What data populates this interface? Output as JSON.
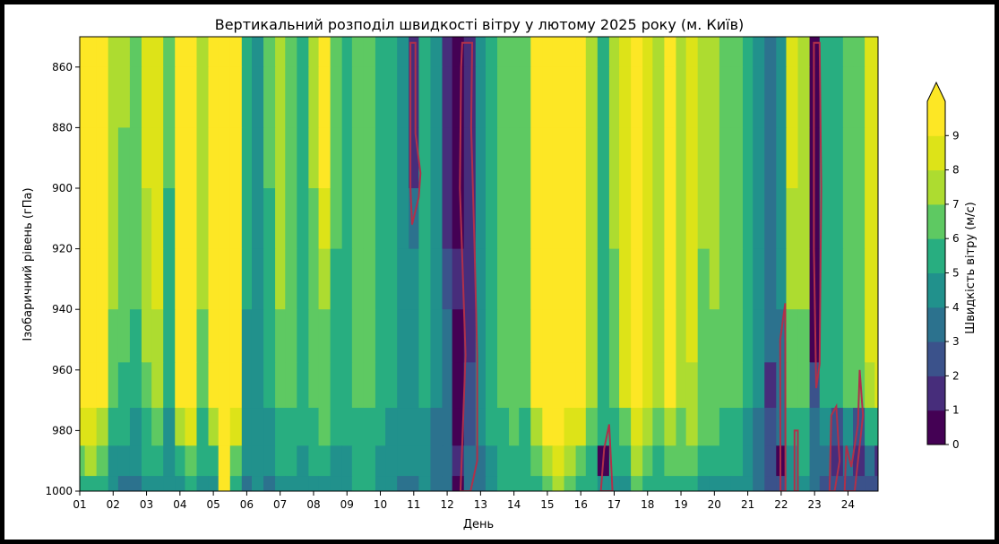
{
  "chart_data": {
    "type": "heatmap",
    "title": "Вертикальний розподіл швидкості вітру у лютому 2025 року (м. Київ)",
    "xlabel": "День",
    "ylabel": "Ізобаричний рівень (гПа)",
    "colorbar_label": "Швидкість вітру (м/с)",
    "colorbar_extend": "max",
    "x_ticks": [
      "01",
      "02",
      "03",
      "04",
      "05",
      "06",
      "07",
      "08",
      "09",
      "10",
      "11",
      "12",
      "13",
      "14",
      "15",
      "16",
      "17",
      "18",
      "19",
      "20",
      "21",
      "22",
      "23",
      "24"
    ],
    "y_ticks": [
      "860",
      "880",
      "900",
      "920",
      "940",
      "960",
      "980",
      "1000"
    ],
    "y_range": [
      850,
      1000
    ],
    "y_inverted": true,
    "x_range": [
      1,
      24.9
    ],
    "color_levels": [
      0,
      1,
      2,
      3,
      4,
      5,
      6,
      7,
      8,
      9
    ],
    "colors": [
      "#440154",
      "#472d7b",
      "#3b528b",
      "#2c728e",
      "#21918c",
      "#28ae80",
      "#5ec962",
      "#addc30",
      "#dde318",
      "#fde725"
    ],
    "contour_color": "#b0304a",
    "levels": [
      850,
      870,
      890,
      910,
      930,
      950,
      965,
      980,
      990,
      1000
    ],
    "days": [
      1,
      1.3,
      1.7,
      2,
      2.3,
      2.7,
      3,
      3.3,
      3.7,
      4,
      4.3,
      4.7,
      5,
      5.3,
      5.7,
      6,
      6.3,
      6.7,
      7,
      7.3,
      7.7,
      8,
      8.3,
      8.7,
      9,
      9.3,
      9.7,
      10,
      10.3,
      10.7,
      11,
      11.3,
      11.7,
      12,
      12.3,
      12.7,
      13,
      13.3,
      13.7,
      14,
      14.3,
      14.7,
      15,
      15.3,
      15.7,
      16,
      16.3,
      16.7,
      17,
      17.3,
      17.7,
      18,
      18.3,
      18.7,
      19,
      19.3,
      19.7,
      20,
      20.3,
      20.7,
      21,
      21.3,
      21.7,
      22,
      22.3,
      22.7,
      23,
      23.3,
      23.7,
      24,
      24.3,
      24.7,
      24.9
    ],
    "wind_speed": [
      [
        9.5,
        9.5,
        9.5,
        7.8,
        7,
        6.6,
        8,
        8.4,
        6,
        9.5,
        9.5,
        7,
        9.5,
        9.5,
        9.5,
        5,
        4,
        6,
        7.5,
        6,
        5,
        7,
        9.5,
        6,
        5,
        6,
        6,
        5.5,
        5,
        4.5,
        1.5,
        5,
        4,
        1,
        0.8,
        1.2,
        4,
        5,
        6,
        6.5,
        6,
        9,
        9.5,
        9.5,
        9.5,
        9.5,
        7,
        5.5,
        7,
        8,
        9.5,
        8.5,
        7.5,
        9,
        7.5,
        8,
        7,
        7,
        6,
        6,
        5,
        4,
        3,
        4,
        8,
        7,
        0.5,
        5,
        5,
        6,
        6,
        8,
        8.5,
        9
      ],
      [
        9.5,
        9.5,
        9.5,
        7.8,
        7,
        6.6,
        8,
        8.4,
        6,
        9.5,
        9.5,
        7,
        9.5,
        9.5,
        9.5,
        5,
        4,
        6,
        7.5,
        6,
        5,
        7,
        9.5,
        6,
        5,
        6,
        6,
        5.5,
        5,
        4.5,
        1.5,
        5,
        4,
        1,
        0.8,
        1.2,
        4,
        5,
        6,
        6.5,
        6,
        9,
        9.5,
        9.5,
        9.5,
        9.5,
        7,
        5.5,
        7,
        8,
        9.5,
        8.5,
        7.5,
        9,
        7.5,
        8,
        7,
        7,
        6,
        6,
        5,
        4,
        3,
        4,
        8,
        7,
        0.5,
        5,
        5,
        6,
        6,
        8,
        8.5,
        9
      ],
      [
        9.5,
        9.5,
        9.5,
        7.8,
        6.8,
        6.4,
        8,
        8.4,
        6,
        9.5,
        9.5,
        7,
        9.5,
        9.5,
        9.5,
        5,
        4,
        6,
        7.4,
        6,
        5,
        7,
        9.5,
        6,
        5,
        6,
        6,
        5.5,
        5,
        4.5,
        1.5,
        5,
        4,
        1,
        0.8,
        1.2,
        4,
        5,
        6,
        6.5,
        6,
        9,
        9.5,
        9.5,
        9.5,
        9.5,
        7,
        5.5,
        7,
        8,
        9.5,
        8.5,
        7.5,
        9,
        7.5,
        8,
        7,
        7,
        6,
        6,
        5,
        4,
        3,
        4,
        8,
        7,
        0.5,
        5,
        5,
        6,
        6,
        8,
        8.5,
        9
      ],
      [
        9.5,
        9.5,
        9.5,
        7.5,
        6.6,
        6.2,
        7.8,
        8.4,
        5.8,
        9.5,
        9.5,
        7,
        9.5,
        9.5,
        9.5,
        5,
        4,
        5.8,
        7.2,
        6,
        5,
        6.8,
        8,
        6,
        5,
        6,
        6,
        5.5,
        5,
        4.5,
        3.5,
        5,
        4,
        1.5,
        0.8,
        1,
        4,
        5,
        6,
        6.5,
        6,
        9,
        9.5,
        9.5,
        9.5,
        9.5,
        7,
        5.5,
        7,
        8,
        9.5,
        8.5,
        7.5,
        9,
        7.5,
        8,
        7,
        7,
        6,
        6,
        5,
        4,
        3,
        4,
        7.5,
        7,
        0.5,
        5,
        5,
        6,
        6,
        8,
        8.5,
        9
      ],
      [
        9.5,
        9.5,
        9.5,
        7.2,
        6.4,
        6,
        7.6,
        8.2,
        5.6,
        9.5,
        9.5,
        7,
        9.5,
        9.5,
        9.5,
        5,
        4,
        5.6,
        7,
        6,
        5,
        6.6,
        7,
        5.8,
        5,
        6,
        6,
        5.5,
        5,
        4.5,
        4,
        5,
        4,
        2.5,
        1,
        1.5,
        4,
        5,
        6,
        6.5,
        6,
        9,
        9.5,
        9.5,
        9.5,
        9.5,
        7,
        5.5,
        6.8,
        8,
        9.5,
        8.5,
        7.5,
        9,
        7.5,
        8,
        6.8,
        7,
        6,
        6,
        5,
        4,
        3,
        4,
        7,
        7,
        0.5,
        5,
        5,
        6,
        6,
        8,
        8.5,
        9
      ],
      [
        9.5,
        9.5,
        9.5,
        6.8,
        6,
        5.6,
        7.2,
        7.8,
        5.4,
        9.5,
        9.5,
        6.8,
        9.5,
        9.5,
        9.5,
        4.8,
        4,
        5.4,
        6.8,
        6,
        5,
        6.4,
        6.6,
        5.6,
        5,
        6,
        6,
        5.5,
        5,
        4.5,
        4,
        5,
        4,
        3,
        0.9,
        1.5,
        4,
        5,
        6,
        6.5,
        6,
        9,
        9.5,
        9.5,
        9.5,
        9.5,
        7,
        5.5,
        6.6,
        8,
        9.5,
        8.5,
        7.5,
        9,
        7.5,
        8,
        6.6,
        6.8,
        6,
        6,
        5,
        4,
        3,
        3.5,
        6.5,
        6.5,
        0.5,
        5,
        5,
        6,
        6,
        8,
        8.5,
        9
      ],
      [
        9.5,
        9.5,
        9.5,
        6.4,
        5.6,
        5.2,
        6.6,
        7.2,
        5.2,
        9.5,
        9.5,
        6.4,
        9.5,
        9.5,
        9.5,
        4.6,
        4,
        5.2,
        6.4,
        6,
        5,
        6.2,
        6.4,
        5.4,
        5,
        6,
        6,
        5.5,
        5,
        4.5,
        4,
        5,
        4,
        3,
        0.5,
        2,
        4,
        5,
        6,
        6.5,
        6,
        9,
        9.5,
        9.5,
        9.5,
        9.5,
        7,
        5.5,
        6.4,
        8,
        9.5,
        8.5,
        7.5,
        9,
        7.5,
        7.8,
        6.4,
        6.6,
        6,
        6,
        5,
        4,
        1,
        3,
        6,
        6,
        2,
        5,
        5,
        6,
        6,
        7.8,
        8,
        8.5
      ],
      [
        8.2,
        8.5,
        7.4,
        5.6,
        5,
        4.6,
        5.8,
        6.4,
        4.8,
        7.5,
        8.2,
        5.8,
        7.4,
        9.5,
        8.2,
        4.4,
        4,
        4.8,
        5.8,
        5.6,
        5,
        5.8,
        6,
        5.2,
        5,
        5.8,
        5.8,
        5.2,
        4.8,
        4.3,
        4,
        4.8,
        3.8,
        3,
        0.5,
        2.5,
        4,
        5,
        5.8,
        6.3,
        5.8,
        7.2,
        9.5,
        9.5,
        8.6,
        8.2,
        6.4,
        5.2,
        5.8,
        6.8,
        8.8,
        7.8,
        6.8,
        7.6,
        6.8,
        7,
        6,
        6,
        5.5,
        5.5,
        4.5,
        3.8,
        2,
        3,
        5.5,
        5.5,
        3,
        4,
        2,
        4,
        2,
        5,
        5.5,
        6
      ],
      [
        6.5,
        7,
        6.2,
        4.8,
        4.2,
        4,
        5,
        5.4,
        4.4,
        5.6,
        6.8,
        5,
        5.6,
        9.5,
        6.2,
        4,
        4,
        4.2,
        5,
        5,
        4.8,
        5,
        5.2,
        4.8,
        4.8,
        5.4,
        5.4,
        4.8,
        4.5,
        4,
        4,
        4.5,
        3.5,
        3,
        1.8,
        3,
        3.8,
        4.8,
        5.4,
        5.8,
        5.4,
        6,
        7.8,
        8.4,
        7,
        6.4,
        5.6,
        0.5,
        5,
        5.6,
        7.2,
        6.4,
        5.8,
        6.2,
        6,
        6,
        5.4,
        5.4,
        5,
        5,
        4.2,
        3.5,
        2.5,
        0.5,
        4.8,
        5,
        3.5,
        3,
        1.5,
        3,
        1.5,
        3.5,
        1,
        3.5
      ],
      [
        5,
        5.5,
        5,
        4.2,
        3.6,
        3.5,
        4.4,
        4.6,
        4,
        4.6,
        5.4,
        4.4,
        4.6,
        9,
        5,
        3.6,
        4,
        3.6,
        4.2,
        4.4,
        4.4,
        4.4,
        4.6,
        4.4,
        4.5,
        5,
        5,
        4.5,
        4.2,
        3.8,
        3.8,
        4.2,
        3.2,
        3,
        0.5,
        3,
        3.6,
        4.4,
        5,
        5.2,
        5,
        5,
        6.4,
        7,
        6,
        5.4,
        5,
        4,
        4.4,
        4.8,
        6,
        5.4,
        5,
        5.2,
        5.2,
        5.2,
        4.8,
        4.8,
        4.6,
        4.6,
        4,
        3.2,
        2.8,
        2,
        4.2,
        4.5,
        3.5,
        2.5,
        2,
        2,
        2,
        2.5,
        2,
        2.5
      ]
    ],
    "red_contours": [
      [
        [
          10.9,
          852
        ],
        [
          11.05,
          852
        ],
        [
          11.05,
          882
        ],
        [
          11.2,
          895
        ],
        [
          11.15,
          903
        ],
        [
          10.95,
          912
        ],
        [
          10.9,
          900
        ]
      ],
      [
        [
          12.45,
          852
        ],
        [
          12.75,
          852
        ],
        [
          12.72,
          880
        ],
        [
          12.82,
          920
        ],
        [
          12.9,
          955
        ],
        [
          12.9,
          990
        ],
        [
          12.7,
          1000
        ],
        [
          12.4,
          1000
        ],
        [
          12.55,
          955
        ],
        [
          12.38,
          900
        ],
        [
          12.42,
          860
        ]
      ],
      [
        [
          16.6,
          1000
        ],
        [
          16.7,
          986
        ],
        [
          16.85,
          978
        ],
        [
          16.95,
          1000
        ]
      ],
      [
        [
          21.97,
          950
        ],
        [
          22.12,
          938
        ],
        [
          22.13,
          1000
        ],
        [
          21.98,
          1000
        ]
      ],
      [
        [
          22.4,
          980
        ],
        [
          22.5,
          980
        ],
        [
          22.5,
          1000
        ],
        [
          22.4,
          1000
        ]
      ],
      [
        [
          22.98,
          852
        ],
        [
          23.15,
          852
        ],
        [
          23.2,
          900
        ],
        [
          23.15,
          958
        ],
        [
          23.05,
          966
        ],
        [
          22.98,
          920
        ]
      ],
      [
        [
          23.45,
          1000
        ],
        [
          23.5,
          975
        ],
        [
          23.65,
          972
        ],
        [
          23.75,
          990
        ],
        [
          23.6,
          1000
        ]
      ],
      [
        [
          23.9,
          1000
        ],
        [
          23.95,
          985
        ],
        [
          24.1,
          992
        ],
        [
          24.3,
          978
        ],
        [
          24.35,
          960
        ],
        [
          24.45,
          975
        ],
        [
          24.2,
          1000
        ]
      ]
    ]
  }
}
